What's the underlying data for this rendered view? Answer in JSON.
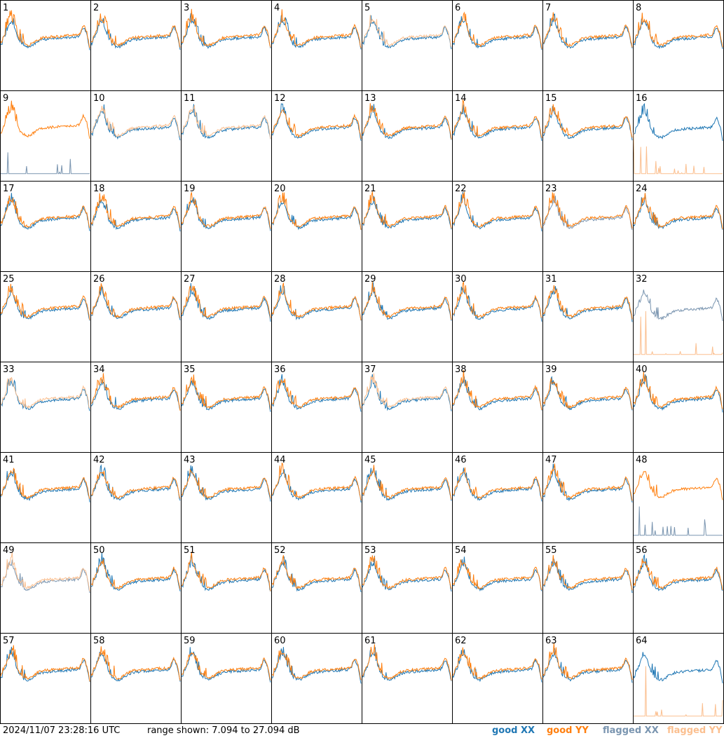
{
  "footer": {
    "timestamp": "2024/11/07 23:28:16 UTC",
    "range_text": "range shown: 7.094 to 27.094 dB"
  },
  "legend": [
    {
      "label": "good XX",
      "color": "#1f77b4"
    },
    {
      "label": "good YY",
      "color": "#ff7f0e"
    },
    {
      "label": "flagged XX",
      "color": "#7a95b0"
    },
    {
      "label": "flagged YY",
      "color": "#fbbf8f"
    }
  ],
  "chart_data": {
    "type": "line",
    "layout": "8x8 small multiples of bandpass spectra",
    "range_db": [
      7.094,
      27.094
    ],
    "colors": {
      "good_xx": "#1f77b4",
      "good_yy": "#ff7f0e",
      "flagged_xx": "#7a95b0",
      "flagged_yy": "#fbbf8f"
    },
    "tiles": [
      {
        "id": "1",
        "xx": "good",
        "yy": "good"
      },
      {
        "id": "2",
        "xx": "good",
        "yy": "good"
      },
      {
        "id": "3",
        "xx": "good",
        "yy": "good"
      },
      {
        "id": "4",
        "xx": "good",
        "yy": "good"
      },
      {
        "id": "5",
        "xx": "good",
        "yy": "flagged"
      },
      {
        "id": "6",
        "xx": "good",
        "yy": "good"
      },
      {
        "id": "7",
        "xx": "good",
        "yy": "good"
      },
      {
        "id": "8",
        "xx": "good",
        "yy": "good"
      },
      {
        "id": "9",
        "xx": "flagged",
        "yy": "good"
      },
      {
        "id": "10",
        "xx": "good",
        "yy": "flagged"
      },
      {
        "id": "11",
        "xx": "good",
        "yy": "flagged"
      },
      {
        "id": "12",
        "xx": "good",
        "yy": "good"
      },
      {
        "id": "13",
        "xx": "good",
        "yy": "good"
      },
      {
        "id": "14",
        "xx": "good",
        "yy": "good"
      },
      {
        "id": "15",
        "xx": "good",
        "yy": "good"
      },
      {
        "id": "16",
        "xx": "good",
        "yy": "flagged"
      },
      {
        "id": "17",
        "xx": "good",
        "yy": "good"
      },
      {
        "id": "18",
        "xx": "good",
        "yy": "good"
      },
      {
        "id": "19",
        "xx": "good",
        "yy": "good"
      },
      {
        "id": "20",
        "xx": "good",
        "yy": "good"
      },
      {
        "id": "21",
        "xx": "good",
        "yy": "good"
      },
      {
        "id": "22",
        "xx": "good",
        "yy": "good"
      },
      {
        "id": "23",
        "xx": "flagged",
        "yy": "good"
      },
      {
        "id": "24",
        "xx": "good",
        "yy": "good"
      },
      {
        "id": "25",
        "xx": "good",
        "yy": "good"
      },
      {
        "id": "26",
        "xx": "good",
        "yy": "good"
      },
      {
        "id": "27",
        "xx": "good",
        "yy": "good"
      },
      {
        "id": "28",
        "xx": "good",
        "yy": "good"
      },
      {
        "id": "29",
        "xx": "good",
        "yy": "good"
      },
      {
        "id": "30",
        "xx": "good",
        "yy": "good"
      },
      {
        "id": "31",
        "xx": "good",
        "yy": "good"
      },
      {
        "id": "32",
        "xx": "flagged",
        "yy": "flagged"
      },
      {
        "id": "33",
        "xx": "good",
        "yy": "flagged"
      },
      {
        "id": "34",
        "xx": "good",
        "yy": "good"
      },
      {
        "id": "35",
        "xx": "good",
        "yy": "good"
      },
      {
        "id": "36",
        "xx": "good",
        "yy": "good"
      },
      {
        "id": "37",
        "xx": "good",
        "yy": "flagged"
      },
      {
        "id": "38",
        "xx": "good",
        "yy": "good"
      },
      {
        "id": "39",
        "xx": "good",
        "yy": "good"
      },
      {
        "id": "40",
        "xx": "good",
        "yy": "good"
      },
      {
        "id": "41",
        "xx": "good",
        "yy": "good"
      },
      {
        "id": "42",
        "xx": "good",
        "yy": "good"
      },
      {
        "id": "43",
        "xx": "good",
        "yy": "good"
      },
      {
        "id": "44",
        "xx": "good",
        "yy": "good"
      },
      {
        "id": "45",
        "xx": "good",
        "yy": "good"
      },
      {
        "id": "46",
        "xx": "good",
        "yy": "good"
      },
      {
        "id": "47",
        "xx": "good",
        "yy": "good"
      },
      {
        "id": "48",
        "xx": "flagged",
        "yy": "good"
      },
      {
        "id": "49",
        "xx": "flagged",
        "yy": "flagged"
      },
      {
        "id": "50",
        "xx": "good",
        "yy": "good"
      },
      {
        "id": "51",
        "xx": "good",
        "yy": "good"
      },
      {
        "id": "52",
        "xx": "good",
        "yy": "good"
      },
      {
        "id": "53",
        "xx": "good",
        "yy": "good"
      },
      {
        "id": "54",
        "xx": "good",
        "yy": "good"
      },
      {
        "id": "55",
        "xx": "good",
        "yy": "good"
      },
      {
        "id": "56",
        "xx": "good",
        "yy": "good"
      },
      {
        "id": "57",
        "xx": "good",
        "yy": "good"
      },
      {
        "id": "58",
        "xx": "good",
        "yy": "good"
      },
      {
        "id": "59",
        "xx": "good",
        "yy": "good"
      },
      {
        "id": "60",
        "xx": "good",
        "yy": "good"
      },
      {
        "id": "61",
        "xx": "good",
        "yy": "good"
      },
      {
        "id": "62",
        "xx": "good",
        "yy": "good"
      },
      {
        "id": "63",
        "xx": "good",
        "yy": "good"
      },
      {
        "id": "64",
        "xx": "good",
        "yy": "flagged"
      }
    ]
  }
}
